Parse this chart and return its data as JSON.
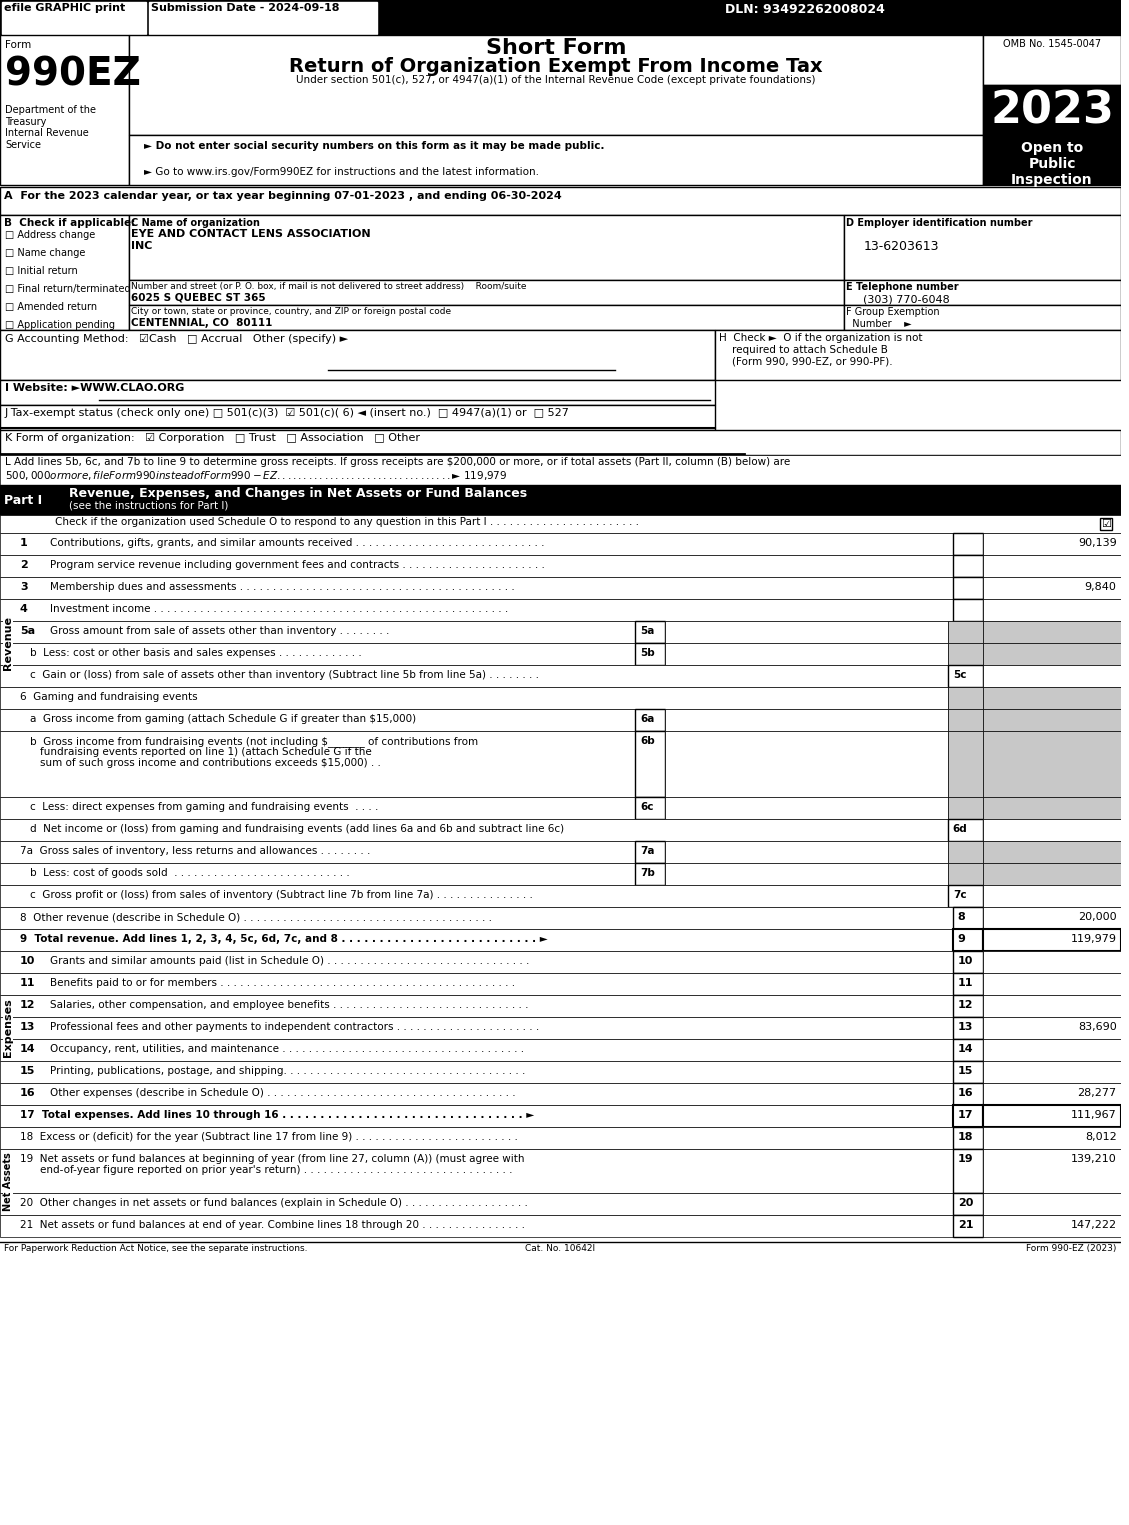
{
  "header_bar": {
    "efile_text": "efile GRAPHIC print",
    "submission_text": "Submission Date - 2024-09-18",
    "dln_text": "DLN: 93492262008024"
  },
  "form_title": "Short Form",
  "form_subtitle": "Return of Organization Exempt From Income Tax",
  "form_under": "Under section 501(c), 527, or 4947(a)(1) of the Internal Revenue Code (except private foundations)",
  "form_number": "990EZ",
  "year": "2023",
  "omb": "OMB No. 1545-0047",
  "open_to_public": "Open to\nPublic\nInspection",
  "dept_text": "Department of the\nTreasury\nInternal Revenue\nService",
  "bullet1": "► Do not enter social security numbers on this form as it may be made public.",
  "bullet2": "► Go to www.irs.gov/Form990EZ for instructions and the latest information.",
  "section_A": "A  For the 2023 calendar year, or tax year beginning 07-01-2023 , and ending 06-30-2024",
  "section_B_label": "B  Check if applicable:",
  "checkboxes_B": [
    "Address change",
    "Name change",
    "Initial return",
    "Final return/terminated",
    "Amended return",
    "Application pending"
  ],
  "section_C_label": "C Name of organization",
  "org_name": "EYE AND CONTACT LENS ASSOCIATION\nINC",
  "street_label": "Number and street (or P. O. box, if mail is not delivered to street address)    Room/suite",
  "street": "6025 S QUEBEC ST 365",
  "city_label": "City or town, state or province, country, and ZIP or foreign postal code",
  "city": "CENTENNIAL, CO  80111",
  "section_D_label": "D Employer identification number",
  "ein": "13-6203613",
  "section_E_label": "E Telephone number",
  "phone": "(303) 770-6048",
  "section_F_label": "F Group Exemption\n  Number    ►",
  "section_G": "G Accounting Method:   ☑Cash   □ Accrual   Other (specify) ►",
  "section_H": "H  Check ►  O if the organization is not\n    required to attach Schedule B\n    (Form 990, 990-EZ, or 990-PF).",
  "section_I": "I Website: ►WWW.CLAO.ORG",
  "section_J": "J Tax-exempt status (check only one) □ 501(c)(3)  ☑ 501(c)( 6) ◄ (insert no.)  □ 4947(a)(1) or  □ 527",
  "section_K": "K Form of organization:   ☑ Corporation   □ Trust   □ Association   □ Other",
  "section_L": "L Add lines 5b, 6c, and 7b to line 9 to determine gross receipts. If gross receipts are $200,000 or more, or if total assets (Part II, column (B) below) are\n$500,000 or more, file Form 990 instead of Form 990-EZ . . . . . . . . . . . . . . . . . . . . . . . . . . . . . . . . . ►$ 119,979",
  "part1_title": "Revenue, Expenses, and Changes in Net Assets or Fund Balances",
  "part1_sub": "(see the instructions for Part I)",
  "part1_check": "Check if the organization used Schedule O to respond to any question in this Part I . . . . . . . . . . . . . . . . . . . . . . .",
  "revenue_lines": [
    {
      "num": "1",
      "text": "Contributions, gifts, grants, and similar amounts received . . . . . . . . . . . . . . . . . . . . . . . . . . . . .",
      "value": "90,139",
      "bold": false
    },
    {
      "num": "2",
      "text": "Program service revenue including government fees and contracts . . . . . . . . . . . . . . . . . . . . . .",
      "value": "",
      "bold": false
    },
    {
      "num": "3",
      "text": "Membership dues and assessments . . . . . . . . . . . . . . . . . . . . . . . . . . . . . . . . . . . . . . . . . .",
      "value": "9,840",
      "bold": false
    },
    {
      "num": "4",
      "text": "Investment income . . . . . . . . . . . . . . . . . . . . . . . . . . . . . . . . . . . . . . . . . . . . . . . . . . . . . .",
      "value": "",
      "bold": false
    }
  ],
  "line5a_text": "5a  Gross amount from sale of assets other than inventory . . . . . . . .",
  "line5b_text": "b  Less: cost or other basis and sales expenses . . . . . . . . . . . . . .",
  "line5c_text": "c  Gain or (loss) from sale of assets other than inventory (Subtract line 5b from line 5a) . . . . . . . .",
  "line6_text": "6  Gaming and fundraising events",
  "line6a_text": "a  Gross income from gaming (attach Schedule G if greater than $15,000)",
  "line6b_text": "b  Gross income from fundraising events (not including $_________ of contributions from\n     fundraising events reported on line 1) (attach Schedule G if the\n     sum of such gross income and contributions exceeds $15,000) . .",
  "line6c_text": "c  Less: direct expenses from gaming and fundraising events  . . . .",
  "line6d_text": "d  Net income or (loss) from gaming and fundraising events (add lines 6a and 6b and subtract line 6c)",
  "line7a_text": "7a  Gross sales of inventory, less returns and allowances . . . . . . . .",
  "line7b_text": "b  Less: cost of goods sold  . . . . . . . . . . . . . . . . . . . . . . . . . . .",
  "line7c_text": "c  Gross profit or (loss) from sales of inventory (Subtract line 7b from line 7a) . . . . . . . . . . . . . . .",
  "line8_text": "8  Other revenue (describe in Schedule O) . . . . . . . . . . . . . . . . . . . . . . . . . . . . . . . . . . . . . .",
  "line8_value": "20,000",
  "line9_text": "9  Total revenue. Add lines 1, 2, 3, 4, 5c, 6d, 7c, and 8 . . . . . . . . . . . . . . . . . . . . . . . . . . ►",
  "line9_value": "119,979",
  "expenses_lines": [
    {
      "num": "10",
      "text": "Grants and similar amounts paid (list in Schedule O) . . . . . . . . . . . . . . . . . . . . . . . . . . . . . . .",
      "value": ""
    },
    {
      "num": "11",
      "text": "Benefits paid to or for members . . . . . . . . . . . . . . . . . . . . . . . . . . . . . . . . . . . . . . . . . . . . .",
      "value": ""
    },
    {
      "num": "12",
      "text": "Salaries, other compensation, and employee benefits . . . . . . . . . . . . . . . . . . . . . . . . . . . . . .",
      "value": ""
    },
    {
      "num": "13",
      "text": "Professional fees and other payments to independent contractors . . . . . . . . . . . . . . . . . . . . . .",
      "value": "83,690"
    },
    {
      "num": "14",
      "text": "Occupancy, rent, utilities, and maintenance . . . . . . . . . . . . . . . . . . . . . . . . . . . . . . . . . . . . .",
      "value": ""
    },
    {
      "num": "15",
      "text": "Printing, publications, postage, and shipping. . . . . . . . . . . . . . . . . . . . . . . . . . . . . . . . . . . . .",
      "value": ""
    },
    {
      "num": "16",
      "text": "Other expenses (describe in Schedule O) . . . . . . . . . . . . . . . . . . . . . . . . . . . . . . . . . . . . . .",
      "value": "28,277"
    }
  ],
  "line17_text": "17  Total expenses. Add lines 10 through 16 . . . . . . . . . . . . . . . . . . . . . . . . . . . . . . . . ►",
  "line17_value": "111,967",
  "line18_text": "18  Excess or (deficit) for the year (Subtract line 17 from line 9) . . . . . . . . . . . . . . . . . . . . . . . . .",
  "line18_value": "8,012",
  "line19_text": "19  Net assets or fund balances at beginning of year (from line 27, column (A)) (must agree with\n      end-of-year figure reported on prior year's return) . . . . . . . . . . . . . . . . . . . . . . . . . . . . . . . .",
  "line19_value": "139,210",
  "line20_text": "20  Other changes in net assets or fund balances (explain in Schedule O) . . . . . . . . . . . . . . . . . . .",
  "line20_value": "",
  "line21_text": "21  Net assets or fund balances at end of year. Combine lines 18 through 20 . . . . . . . . . . . . . . . .",
  "line21_value": "147,222",
  "footer_left": "For Paperwork Reduction Act Notice, see the separate instructions.",
  "footer_center": "Cat. No. 10642I",
  "footer_right": "Form 990-EZ (2023)",
  "colors": {
    "black": "#000000",
    "white": "#ffffff",
    "light_gray": "#c8c8c8",
    "dark_gray": "#404040",
    "header_bg": "#000000",
    "part_header_bg": "#000000",
    "year_bg": "#000000",
    "open_bg": "#000000",
    "row_alt": "#e8e8e8"
  }
}
